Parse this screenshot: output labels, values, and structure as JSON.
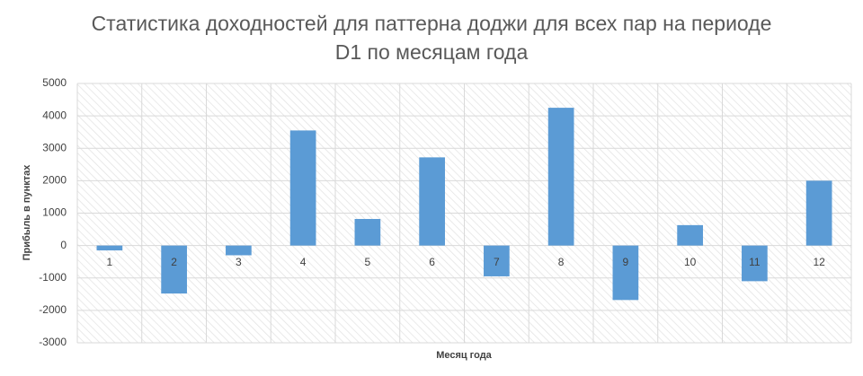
{
  "chart_data": {
    "type": "bar",
    "title": "Статистика доходностей для паттерна доджи для всех пар на периоде D1 по месяцам года",
    "x_label": "Месяц года",
    "y_label": "Прибыль в пунктах",
    "categories": [
      "1",
      "2",
      "3",
      "4",
      "5",
      "6",
      "7",
      "8",
      "9",
      "10",
      "11",
      "12"
    ],
    "values": [
      -150,
      -1480,
      -300,
      3550,
      820,
      2720,
      -950,
      4250,
      -1680,
      630,
      -1100,
      2000
    ],
    "color": "#5b9bd5",
    "ylim": [
      -3000,
      5000
    ],
    "yticks": [
      -3000,
      -2000,
      -1000,
      0,
      1000,
      2000,
      3000,
      4000,
      5000
    ],
    "grid": true
  }
}
